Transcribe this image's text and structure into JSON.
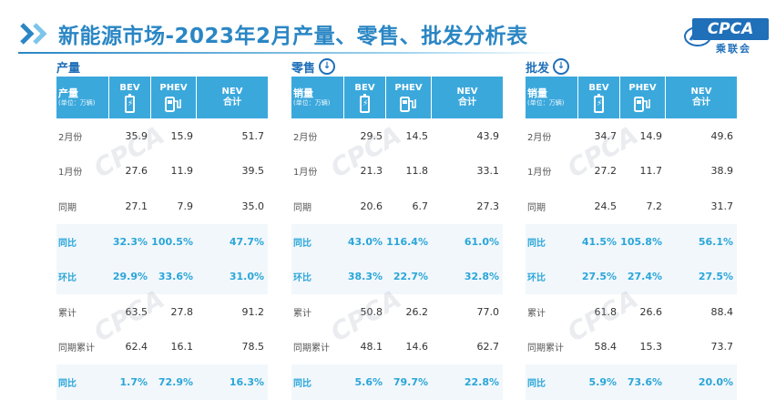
{
  "title": "新能源市场-2023年2月产量、零售、批发分析表",
  "logo": {
    "badge": "CPCA",
    "sub": "乘联会"
  },
  "watermark_text": "CPCA",
  "colors": {
    "accent": "#2a86c4",
    "header_bg": "#3ba8dc",
    "highlight": "#2aa6d9"
  },
  "panels": [
    {
      "title": "产量",
      "has_down_icon": false,
      "header": {
        "label": "产量",
        "unit": "(单位：万辆)",
        "bev": "BEV",
        "phev": "PHEV",
        "nev": "NEV",
        "nev_sub": "合计"
      },
      "rows": [
        {
          "label": "2月份",
          "bev": "35.9",
          "phev": "15.9",
          "nev": "51.7",
          "highlight": false
        },
        {
          "label": "1月份",
          "bev": "27.6",
          "phev": "11.9",
          "nev": "39.5",
          "highlight": false
        },
        {
          "label": "同期",
          "bev": "27.1",
          "phev": "7.9",
          "nev": "35.0",
          "highlight": false
        },
        {
          "label": "同比",
          "bev": "32.3%",
          "phev": "100.5%",
          "nev": "47.7%",
          "highlight": true
        },
        {
          "label": "环比",
          "bev": "29.9%",
          "phev": "33.6%",
          "nev": "31.0%",
          "highlight": true
        },
        {
          "label": "累计",
          "bev": "63.5",
          "phev": "27.8",
          "nev": "91.2",
          "highlight": false
        },
        {
          "label": "同期累计",
          "bev": "62.4",
          "phev": "16.1",
          "nev": "78.5",
          "highlight": false
        },
        {
          "label": "同比",
          "bev": "1.7%",
          "phev": "72.9%",
          "nev": "16.3%",
          "highlight": true
        }
      ]
    },
    {
      "title": "零售",
      "has_down_icon": true,
      "header": {
        "label": "销量",
        "unit": "(单位：万辆)",
        "bev": "BEV",
        "phev": "PHEV",
        "nev": "NEV",
        "nev_sub": "合计"
      },
      "rows": [
        {
          "label": "2月份",
          "bev": "29.5",
          "phev": "14.5",
          "nev": "43.9",
          "highlight": false
        },
        {
          "label": "1月份",
          "bev": "21.3",
          "phev": "11.8",
          "nev": "33.1",
          "highlight": false
        },
        {
          "label": "同期",
          "bev": "20.6",
          "phev": "6.7",
          "nev": "27.3",
          "highlight": false
        },
        {
          "label": "同比",
          "bev": "43.0%",
          "phev": "116.4%",
          "nev": "61.0%",
          "highlight": true
        },
        {
          "label": "环比",
          "bev": "38.3%",
          "phev": "22.7%",
          "nev": "32.8%",
          "highlight": true
        },
        {
          "label": "累计",
          "bev": "50.8",
          "phev": "26.2",
          "nev": "77.0",
          "highlight": false
        },
        {
          "label": "同期累计",
          "bev": "48.1",
          "phev": "14.6",
          "nev": "62.7",
          "highlight": false
        },
        {
          "label": "同比",
          "bev": "5.6%",
          "phev": "79.7%",
          "nev": "22.8%",
          "highlight": true
        }
      ]
    },
    {
      "title": "批发",
      "has_down_icon": true,
      "header": {
        "label": "销量",
        "unit": "(单位：万辆)",
        "bev": "BEV",
        "phev": "PHEV",
        "nev": "NEV",
        "nev_sub": "合计"
      },
      "rows": [
        {
          "label": "2月份",
          "bev": "34.7",
          "phev": "14.9",
          "nev": "49.6",
          "highlight": false
        },
        {
          "label": "1月份",
          "bev": "27.2",
          "phev": "11.7",
          "nev": "38.9",
          "highlight": false
        },
        {
          "label": "同期",
          "bev": "24.5",
          "phev": "7.2",
          "nev": "31.7",
          "highlight": false
        },
        {
          "label": "同比",
          "bev": "41.5%",
          "phev": "105.8%",
          "nev": "56.1%",
          "highlight": true
        },
        {
          "label": "环比",
          "bev": "27.5%",
          "phev": "27.4%",
          "nev": "27.5%",
          "highlight": true
        },
        {
          "label": "累计",
          "bev": "61.8",
          "phev": "26.6",
          "nev": "88.4",
          "highlight": false
        },
        {
          "label": "同期累计",
          "bev": "58.4",
          "phev": "15.3",
          "nev": "73.7",
          "highlight": false
        },
        {
          "label": "同比",
          "bev": "5.9%",
          "phev": "73.6%",
          "nev": "20.0%",
          "highlight": true
        }
      ]
    }
  ]
}
